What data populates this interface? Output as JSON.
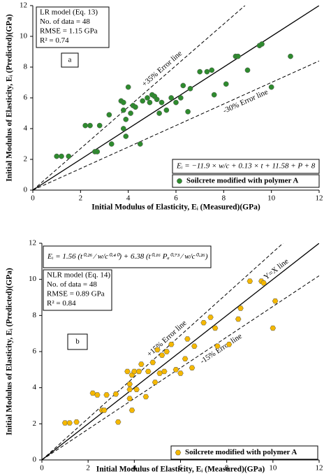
{
  "chart_data": [
    {
      "type": "scatter",
      "panel_label": "a",
      "xlabel": "Initial Modulus of Elasticity, Eᵢ (Measured)(GPa)",
      "ylabel": "Initial Modulus of Elasticity, Eᵢ (Predicted)(GPa)",
      "xlim": [
        0,
        12
      ],
      "ylim": [
        0,
        12
      ],
      "xticks": [
        0,
        2,
        4,
        6,
        8,
        10,
        12
      ],
      "yticks": [
        0,
        2,
        4,
        6,
        8,
        10,
        12
      ],
      "info": [
        "LR model (Eq. 13)",
        "No. of data = 48",
        "RMSE = 1.15 GPa",
        "R² = 0.74"
      ],
      "equation": "Eᵢ = −11.9 × w/c + 0.13 × t + 11.58 + P + 8",
      "lines": [
        {
          "slope": 1,
          "style": "solid"
        },
        {
          "slope": 1.35,
          "style": "dashed",
          "label": "+35% Error line"
        },
        {
          "slope": 0.7,
          "style": "dashed",
          "label": "-30% Error line"
        }
      ],
      "x": [
        1.0,
        1.2,
        1.5,
        2.2,
        2.4,
        2.6,
        2.7,
        2.8,
        3.2,
        3.3,
        3.7,
        3.8,
        3.8,
        3.8,
        3.9,
        3.9,
        4.0,
        4.1,
        4.2,
        4.3,
        4.5,
        4.6,
        4.8,
        4.9,
        5.0,
        5.1,
        5.2,
        5.3,
        5.4,
        5.6,
        5.8,
        6.0,
        6.2,
        6.3,
        6.5,
        6.6,
        7.0,
        7.3,
        7.5,
        7.6,
        8.1,
        8.5,
        8.6,
        9.0,
        9.5,
        9.6,
        10.0,
        10.8
      ],
      "series": [
        {
          "name": "Soilcrete modified with polymer A",
          "color": "#2e8b2e",
          "values": [
            2.2,
            2.2,
            2.2,
            4.2,
            4.2,
            2.5,
            2.5,
            4.2,
            4.9,
            3.0,
            5.8,
            5.2,
            5.7,
            4.0,
            3.5,
            4.6,
            6.7,
            5.0,
            5.5,
            5.4,
            3.0,
            5.8,
            6.0,
            5.7,
            6.2,
            6.1,
            5.9,
            5.0,
            5.7,
            5.2,
            6.0,
            5.7,
            6.0,
            6.8,
            5.1,
            6.6,
            7.7,
            7.7,
            7.8,
            6.2,
            6.9,
            8.7,
            8.7,
            7.8,
            9.4,
            9.5,
            6.7,
            8.7
          ]
        }
      ]
    },
    {
      "type": "scatter",
      "panel_label": "b",
      "xlabel": "Initial Modulus of Elasticity, Eᵢ (Measured)(GPa)",
      "ylabel": "Initial Modulus of Elasticity, Eᵢ (Predicted)(GPa)",
      "xlim": [
        0,
        12
      ],
      "ylim": [
        0,
        12
      ],
      "xticks": [
        0,
        2,
        4,
        6,
        8,
        10,
        12
      ],
      "yticks": [
        0,
        2,
        4,
        6,
        8,
        10,
        12
      ],
      "info": [
        "NLR model (Eq. 14)",
        "No. of data = 48",
        "RMSE = 0.89 GPa",
        "R² = 0.84"
      ],
      "equation": "Eᵢ = 1.56 (t⁰·²⁶ ⁄ w/c⁰·⁴⁰) + 6.38 (t⁰·¹⁶ Pₐ⁰·⁷³ ⁄ w/c⁰·²⁶)",
      "lines": [
        {
          "slope": 1,
          "style": "solid",
          "label": "Y=X line"
        },
        {
          "slope": 1.15,
          "style": "dashed",
          "label": "+15% Error line"
        },
        {
          "slope": 0.85,
          "style": "dashed",
          "label": "-15% Error line"
        }
      ],
      "x": [
        1.0,
        1.2,
        1.5,
        2.2,
        2.4,
        2.6,
        2.7,
        2.8,
        3.2,
        3.3,
        3.7,
        3.8,
        3.8,
        3.8,
        3.9,
        3.9,
        4.0,
        4.1,
        4.2,
        4.3,
        4.5,
        4.6,
        4.8,
        4.9,
        5.0,
        5.1,
        5.2,
        5.3,
        5.4,
        5.6,
        5.8,
        6.0,
        6.2,
        6.3,
        6.5,
        6.6,
        7.0,
        7.3,
        7.5,
        7.6,
        8.1,
        8.5,
        8.6,
        9.0,
        9.5,
        9.6,
        10.0,
        10.1
      ],
      "series": [
        {
          "name": "Soilcrete modified with polymer A",
          "color": "#f5b800",
          "values": [
            2.05,
            2.05,
            2.1,
            3.7,
            3.6,
            2.75,
            2.75,
            3.6,
            3.65,
            2.1,
            4.9,
            4.2,
            3.9,
            3.4,
            2.75,
            4.7,
            4.9,
            3.9,
            4.9,
            5.3,
            3.5,
            4.9,
            5.4,
            4.3,
            6.1,
            4.8,
            5.8,
            4.9,
            6.0,
            6.4,
            5.0,
            4.8,
            5.6,
            6.7,
            5.1,
            6.3,
            7.6,
            7.9,
            7.3,
            6.3,
            6.4,
            7.8,
            8.4,
            9.9,
            9.9,
            9.8,
            7.3,
            8.8
          ]
        }
      ]
    }
  ]
}
